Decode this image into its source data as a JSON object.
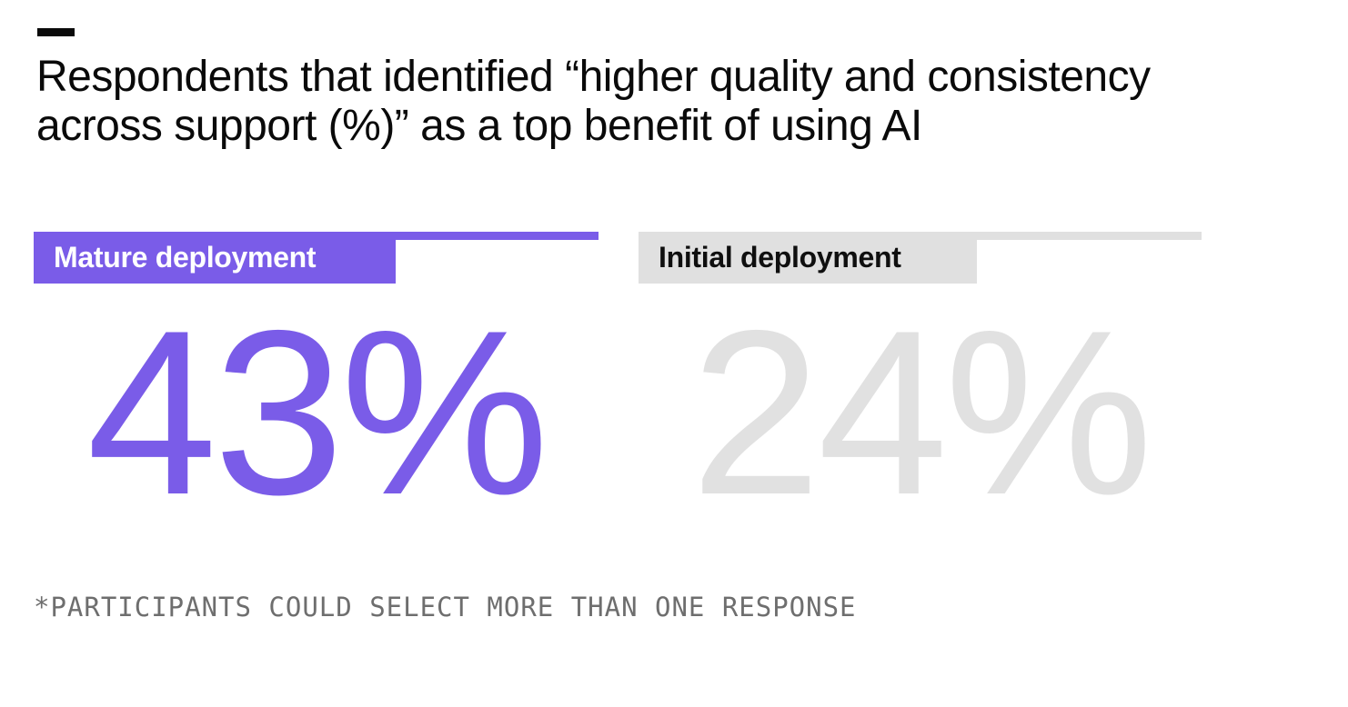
{
  "header": {
    "title_lines": [
      "Respondents that identified “higher quality and consistency",
      "across support (%)” as a top benefit of using AI"
    ]
  },
  "chart_data": {
    "type": "bar",
    "title": "Respondents that identified “higher quality and consistency across support (%)” as a top benefit of using AI",
    "categories": [
      "Mature deployment",
      "Initial deployment"
    ],
    "values": [
      43,
      24
    ],
    "unit": "%",
    "value_labels": [
      "43%",
      "24%"
    ],
    "annotations": [
      "*PARTICIPANTS COULD SELECT MORE THAN ONE RESPONSE"
    ],
    "legend_position": "none",
    "grid": false,
    "colors": {
      "mature_accent": "#7a5ce8",
      "initial_accent": "#e0e0e0",
      "initial_value_text": "#e1e1e1",
      "title_text": "#0a0a0a",
      "footnote_text": "#6e6e6e",
      "background": "#ffffff"
    }
  },
  "columns": [
    {
      "label": "Mature deployment",
      "value_text": "43%"
    },
    {
      "label": "Initial deployment",
      "value_text": "24%"
    }
  ],
  "footnote": "*PARTICIPANTS COULD SELECT MORE THAN ONE RESPONSE"
}
